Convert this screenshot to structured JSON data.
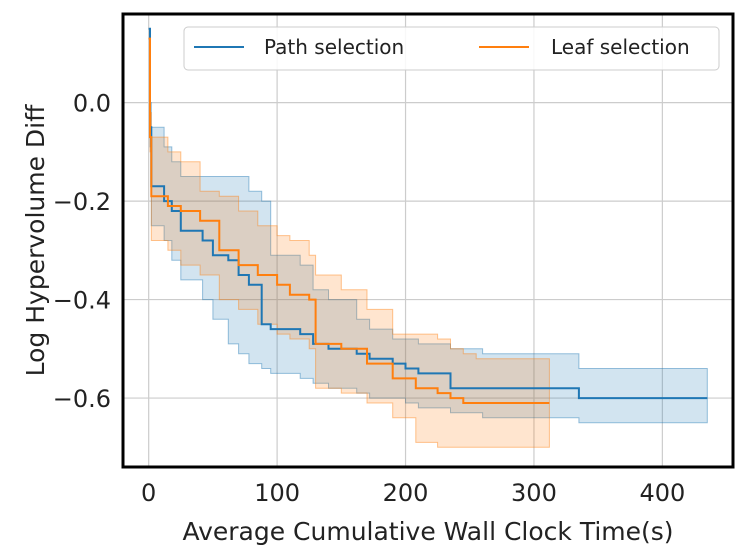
{
  "chart_data": {
    "type": "line",
    "title": "",
    "xlabel": "Average Cumulative Wall Clock Time(s)",
    "ylabel": "Log Hypervolume Diff",
    "xlim": [
      -20,
      455
    ],
    "ylim": [
      -0.74,
      0.18
    ],
    "xticks": [
      0,
      100,
      200,
      300,
      400
    ],
    "yticks": [
      -0.6,
      -0.4,
      -0.2,
      0.0
    ],
    "xtick_labels": [
      "0",
      "100",
      "200",
      "300",
      "400"
    ],
    "ytick_labels": [
      "−0.6",
      "−0.4",
      "−0.2",
      "0.0"
    ],
    "grid": true,
    "legend_position": "top-right",
    "series": [
      {
        "name": "Path selection",
        "color": "#1f77b4",
        "x": [
          0,
          1,
          2,
          12,
          18,
          25,
          42,
          50,
          62,
          70,
          78,
          88,
          95,
          108,
          118,
          128,
          140,
          162,
          172,
          190,
          200,
          210,
          235,
          260,
          335,
          435
        ],
        "mean": [
          0.15,
          -0.05,
          -0.17,
          -0.2,
          -0.22,
          -0.26,
          -0.28,
          -0.31,
          -0.32,
          -0.35,
          -0.37,
          -0.45,
          -0.46,
          -0.46,
          -0.47,
          -0.49,
          -0.5,
          -0.51,
          -0.52,
          -0.53,
          -0.54,
          -0.55,
          -0.58,
          -0.58,
          -0.6,
          -0.6
        ],
        "upper": [
          0.15,
          0.0,
          -0.05,
          -0.09,
          -0.12,
          -0.15,
          -0.15,
          -0.15,
          -0.15,
          -0.15,
          -0.18,
          -0.2,
          -0.31,
          -0.31,
          -0.33,
          -0.38,
          -0.4,
          -0.44,
          -0.46,
          -0.48,
          -0.48,
          -0.49,
          -0.5,
          -0.51,
          -0.54,
          -0.54
        ],
        "lower": [
          0.15,
          -0.09,
          -0.25,
          -0.28,
          -0.32,
          -0.36,
          -0.4,
          -0.44,
          -0.49,
          -0.51,
          -0.53,
          -0.54,
          -0.55,
          -0.55,
          -0.56,
          -0.57,
          -0.58,
          -0.59,
          -0.6,
          -0.6,
          -0.61,
          -0.62,
          -0.63,
          -0.64,
          -0.65,
          -0.65
        ]
      },
      {
        "name": "Leaf selection",
        "color": "#ff7f0e",
        "x": [
          0,
          1,
          2,
          15,
          25,
          40,
          55,
          70,
          85,
          100,
          110,
          125,
          130,
          150,
          170,
          190,
          208,
          225,
          235,
          245,
          255,
          312
        ],
        "mean": [
          0.13,
          -0.07,
          -0.19,
          -0.21,
          -0.22,
          -0.24,
          -0.3,
          -0.33,
          -0.35,
          -0.37,
          -0.39,
          -0.4,
          -0.49,
          -0.5,
          -0.53,
          -0.56,
          -0.58,
          -0.59,
          -0.6,
          -0.61,
          -0.61,
          -0.61
        ],
        "upper": [
          0.13,
          -0.02,
          -0.07,
          -0.1,
          -0.12,
          -0.18,
          -0.19,
          -0.22,
          -0.25,
          -0.27,
          -0.28,
          -0.31,
          -0.35,
          -0.38,
          -0.42,
          -0.47,
          -0.47,
          -0.48,
          -0.5,
          -0.51,
          -0.52,
          -0.52
        ],
        "lower": [
          0.13,
          -0.1,
          -0.28,
          -0.3,
          -0.33,
          -0.35,
          -0.4,
          -0.42,
          -0.45,
          -0.47,
          -0.48,
          -0.5,
          -0.58,
          -0.59,
          -0.61,
          -0.64,
          -0.69,
          -0.7,
          -0.7,
          -0.7,
          -0.7,
          -0.7
        ]
      }
    ]
  }
}
